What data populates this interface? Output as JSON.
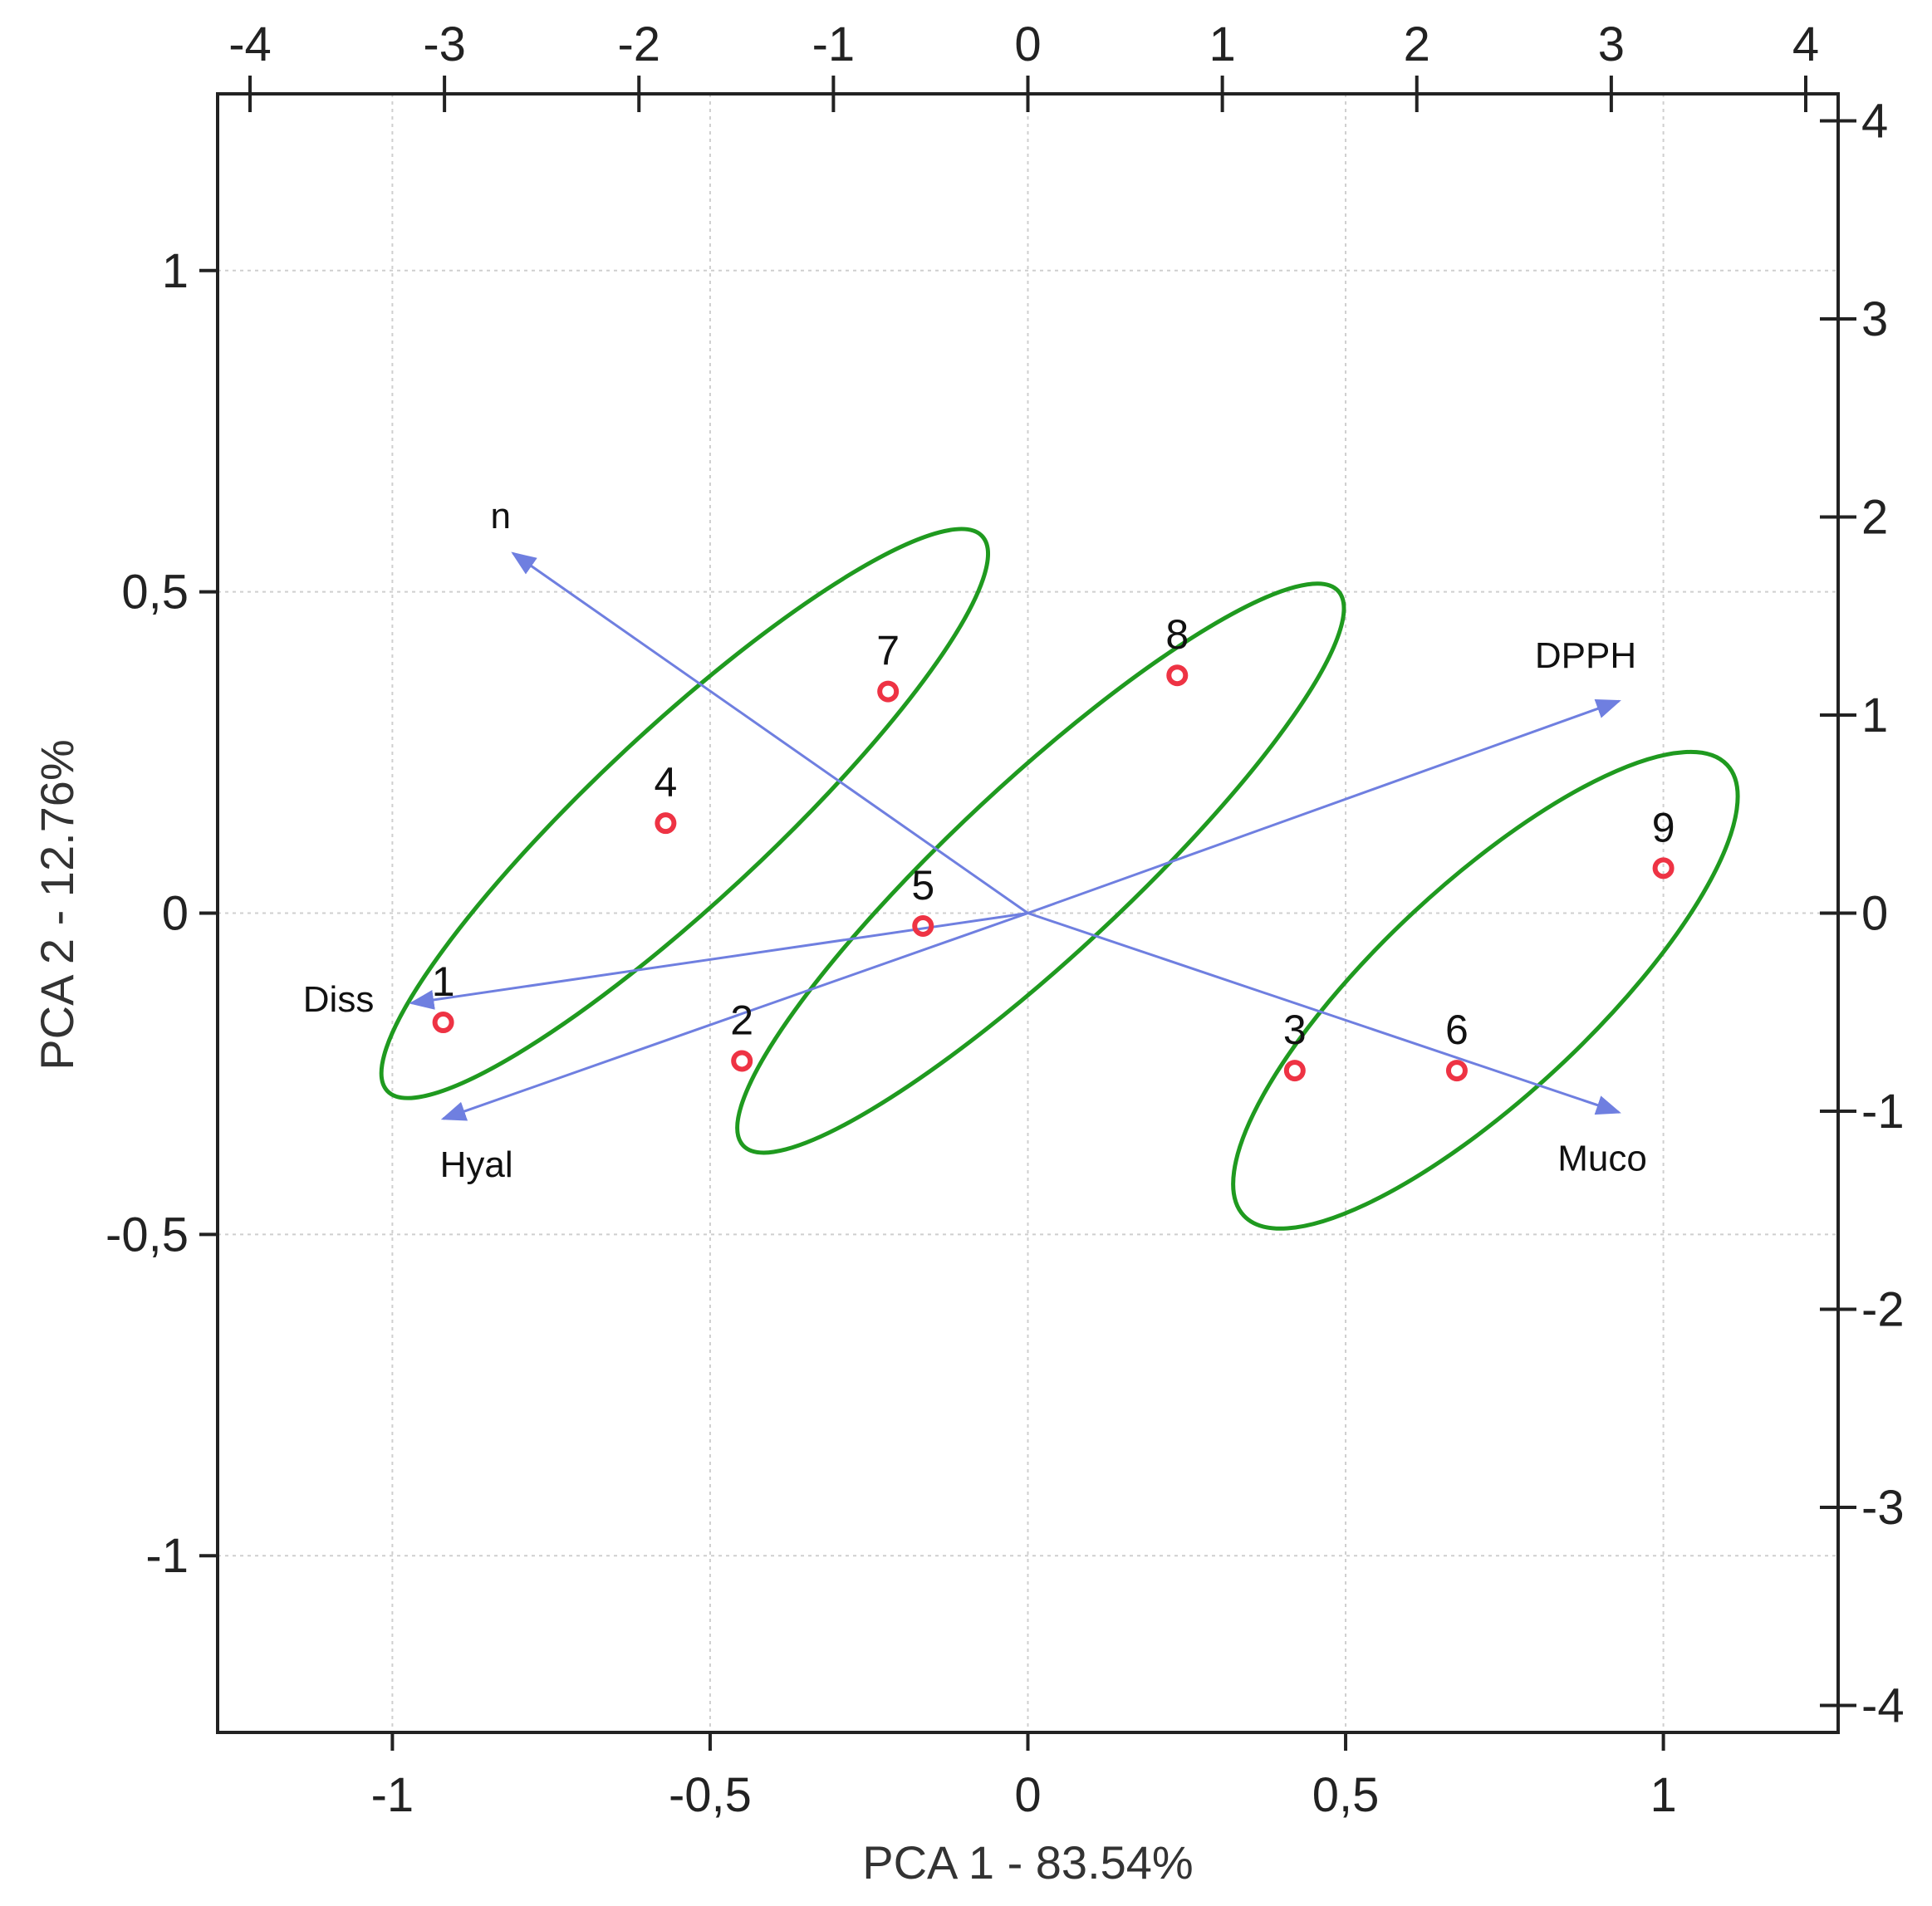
{
  "chart_data": {
    "type": "scatter",
    "subtype": "pca-biplot",
    "xlabel": "PCA 1 - 83.54%",
    "ylabel": "PCA 2 - 12.76%",
    "xlim": [
      -1.275,
      1.275
    ],
    "ylim": [
      -1.275,
      1.275
    ],
    "xticks": [
      -1,
      -0.5,
      0,
      0.5,
      1
    ],
    "xtick_labels": [
      "-1",
      "-0,5",
      "0",
      "0,5",
      "1"
    ],
    "yticks": [
      -1,
      -0.5,
      0,
      0.5,
      1
    ],
    "ytick_labels": [
      "-1",
      "-0,5",
      "0",
      "0,5",
      "1"
    ],
    "top_axis": {
      "ticks": [
        -4,
        -3,
        -2,
        -1,
        0,
        1,
        2,
        3,
        4
      ],
      "tick_labels": [
        "-4",
        "-3",
        "-2",
        "-1",
        "0",
        "1",
        "2",
        "3",
        "4"
      ]
    },
    "right_axis": {
      "ticks": [
        -4,
        -3,
        -2,
        -1,
        0,
        1,
        2,
        3,
        4
      ],
      "tick_labels": [
        "-4",
        "-3",
        "-2",
        "-1",
        "0",
        "1",
        "2",
        "3",
        "4"
      ]
    },
    "grid": true,
    "observations": [
      {
        "label": "1",
        "x": -0.92,
        "y": -0.17
      },
      {
        "label": "2",
        "x": -0.45,
        "y": -0.23
      },
      {
        "label": "3",
        "x": 0.42,
        "y": -0.245
      },
      {
        "label": "4",
        "x": -0.57,
        "y": 0.14
      },
      {
        "label": "5",
        "x": -0.165,
        "y": -0.02
      },
      {
        "label": "6",
        "x": 0.675,
        "y": -0.245
      },
      {
        "label": "7",
        "x": -0.22,
        "y": 0.345
      },
      {
        "label": "8",
        "x": 0.235,
        "y": 0.37
      },
      {
        "label": "9",
        "x": 1.0,
        "y": 0.07
      }
    ],
    "variables": [
      {
        "label": "n",
        "x": -0.81,
        "y": 0.56
      },
      {
        "label": "DPPH",
        "x": 0.93,
        "y": 0.33
      },
      {
        "label": "Diss",
        "x": -0.97,
        "y": -0.14
      },
      {
        "label": "Hyal",
        "x": -0.92,
        "y": -0.32
      },
      {
        "label": "Muco",
        "x": 0.93,
        "y": -0.31
      }
    ],
    "groups": [
      {
        "members": [
          "1",
          "4",
          "7"
        ],
        "center": [
          -0.54,
          0.155
        ],
        "semi_axes": [
          0.64,
          0.135
        ],
        "angle_deg": 43
      },
      {
        "members": [
          "2",
          "5",
          "8"
        ],
        "center": [
          0.02,
          0.07
        ],
        "semi_axes": [
          0.64,
          0.135
        ],
        "angle_deg": 43
      },
      {
        "members": [
          "3",
          "6",
          "9"
        ],
        "center": [
          0.72,
          -0.12
        ],
        "semi_axes": [
          0.52,
          0.165
        ],
        "angle_deg": 43
      }
    ],
    "colors": {
      "points": "#ee3344",
      "vectors": "#6f7fe0",
      "ellipses": "#1f9a1f",
      "grid": "#cfcfcf",
      "frame": "#222222"
    }
  }
}
